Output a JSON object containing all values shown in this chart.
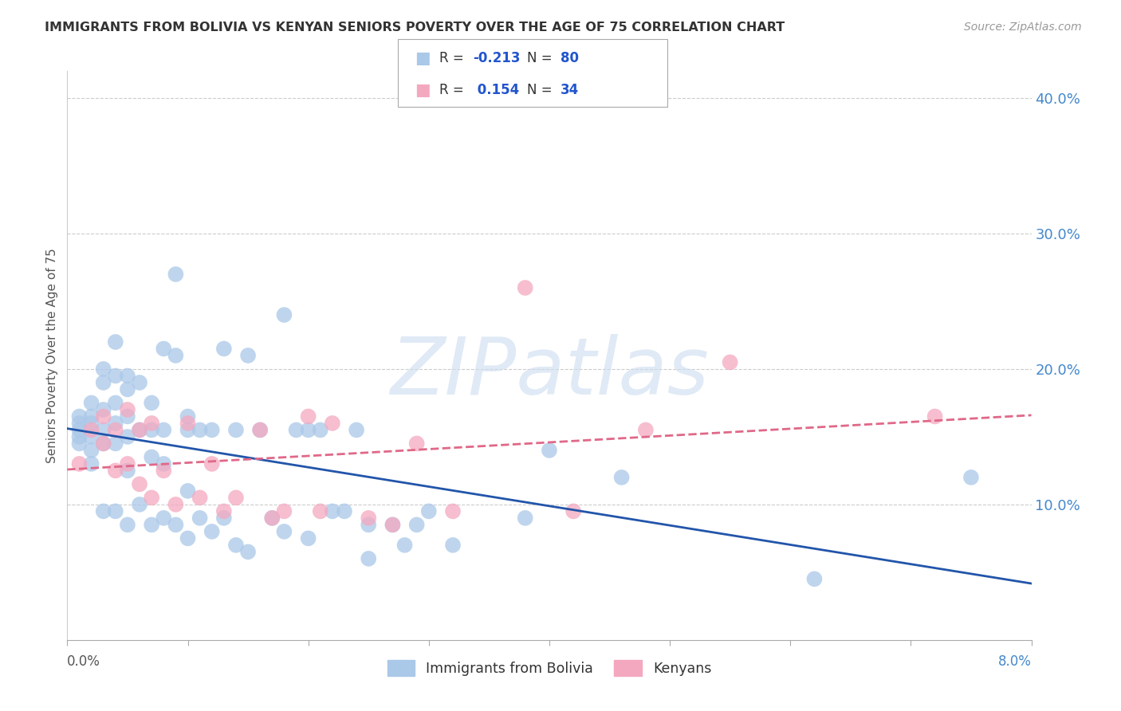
{
  "title": "IMMIGRANTS FROM BOLIVIA VS KENYAN SENIORS POVERTY OVER THE AGE OF 75 CORRELATION CHART",
  "source": "Source: ZipAtlas.com",
  "ylabel": "Seniors Poverty Over the Age of 75",
  "legend_label1": "Immigrants from Bolivia",
  "legend_label2": "Kenyans",
  "color_bolivia": "#aac8e8",
  "color_kenya": "#f4a8c0",
  "trendline_bolivia_color": "#2255aa",
  "trendline_kenya_color": "#e06888",
  "watermark": "ZIPatlas",
  "xlim": [
    0.0,
    0.08
  ],
  "ylim": [
    0.0,
    0.42
  ],
  "xtick_positions": [
    0.0,
    0.01,
    0.02,
    0.03,
    0.04,
    0.05,
    0.06,
    0.07,
    0.08
  ],
  "ytick_vals": [
    0.1,
    0.2,
    0.3,
    0.4
  ],
  "ytick_labels": [
    "10.0%",
    "20.0%",
    "30.0%",
    "40.0%"
  ],
  "grid_color": "#cccccc",
  "background_color": "#ffffff",
  "bolivia_x": [
    0.001,
    0.001,
    0.001,
    0.001,
    0.001,
    0.002,
    0.002,
    0.002,
    0.002,
    0.002,
    0.002,
    0.003,
    0.003,
    0.003,
    0.003,
    0.003,
    0.003,
    0.004,
    0.004,
    0.004,
    0.004,
    0.004,
    0.004,
    0.005,
    0.005,
    0.005,
    0.005,
    0.005,
    0.005,
    0.006,
    0.006,
    0.006,
    0.007,
    0.007,
    0.007,
    0.007,
    0.008,
    0.008,
    0.008,
    0.008,
    0.009,
    0.009,
    0.009,
    0.01,
    0.01,
    0.01,
    0.01,
    0.011,
    0.011,
    0.012,
    0.012,
    0.013,
    0.013,
    0.014,
    0.014,
    0.015,
    0.015,
    0.016,
    0.017,
    0.018,
    0.018,
    0.019,
    0.02,
    0.02,
    0.021,
    0.022,
    0.023,
    0.024,
    0.025,
    0.025,
    0.027,
    0.028,
    0.029,
    0.03,
    0.032,
    0.038,
    0.04,
    0.046,
    0.062,
    0.075
  ],
  "bolivia_y": [
    0.165,
    0.16,
    0.155,
    0.15,
    0.145,
    0.175,
    0.165,
    0.16,
    0.15,
    0.14,
    0.13,
    0.2,
    0.19,
    0.17,
    0.155,
    0.145,
    0.095,
    0.22,
    0.195,
    0.175,
    0.16,
    0.145,
    0.095,
    0.195,
    0.185,
    0.165,
    0.15,
    0.125,
    0.085,
    0.19,
    0.155,
    0.1,
    0.175,
    0.155,
    0.135,
    0.085,
    0.215,
    0.155,
    0.13,
    0.09,
    0.27,
    0.21,
    0.085,
    0.165,
    0.155,
    0.11,
    0.075,
    0.155,
    0.09,
    0.155,
    0.08,
    0.215,
    0.09,
    0.155,
    0.07,
    0.21,
    0.065,
    0.155,
    0.09,
    0.24,
    0.08,
    0.155,
    0.155,
    0.075,
    0.155,
    0.095,
    0.095,
    0.155,
    0.085,
    0.06,
    0.085,
    0.07,
    0.085,
    0.095,
    0.07,
    0.09,
    0.14,
    0.12,
    0.045,
    0.12
  ],
  "kenya_x": [
    0.001,
    0.002,
    0.003,
    0.003,
    0.004,
    0.004,
    0.005,
    0.005,
    0.006,
    0.006,
    0.007,
    0.007,
    0.008,
    0.009,
    0.01,
    0.011,
    0.012,
    0.013,
    0.014,
    0.016,
    0.017,
    0.018,
    0.02,
    0.021,
    0.022,
    0.025,
    0.027,
    0.029,
    0.032,
    0.038,
    0.042,
    0.048,
    0.055,
    0.072
  ],
  "kenya_y": [
    0.13,
    0.155,
    0.165,
    0.145,
    0.155,
    0.125,
    0.17,
    0.13,
    0.155,
    0.115,
    0.16,
    0.105,
    0.125,
    0.1,
    0.16,
    0.105,
    0.13,
    0.095,
    0.105,
    0.155,
    0.09,
    0.095,
    0.165,
    0.095,
    0.16,
    0.09,
    0.085,
    0.145,
    0.095,
    0.26,
    0.095,
    0.155,
    0.205,
    0.165
  ]
}
